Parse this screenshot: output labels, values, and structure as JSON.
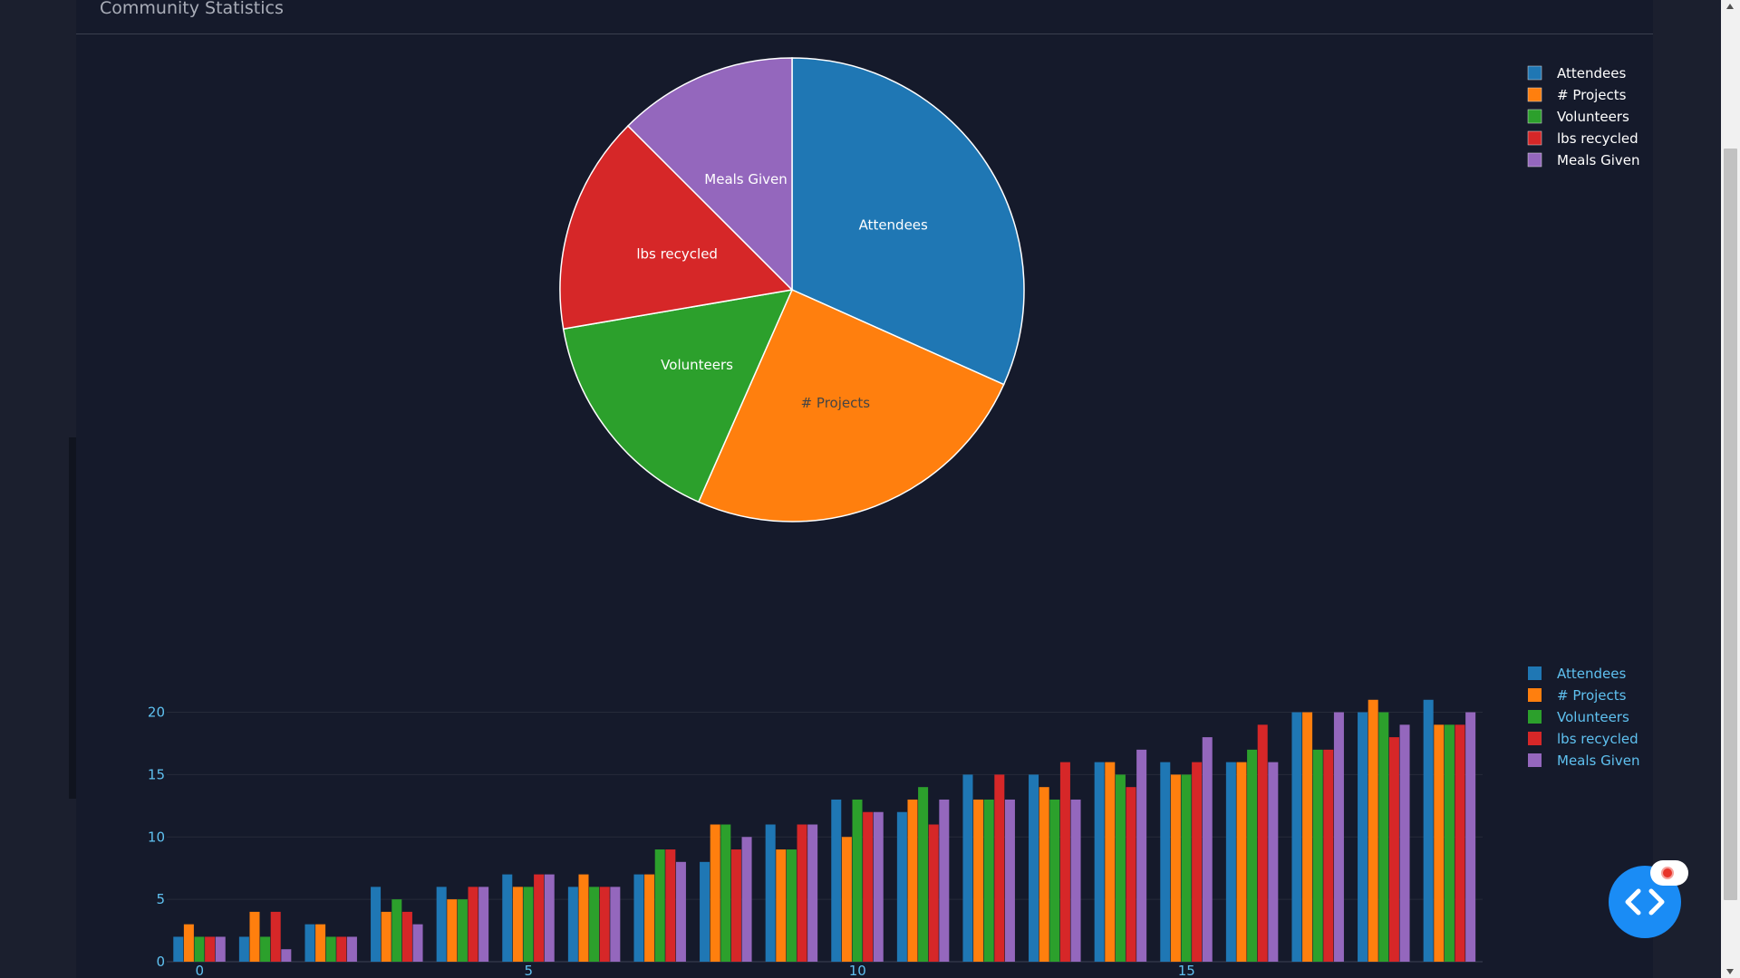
{
  "panel": {
    "title": "Community Statistics"
  },
  "chart_data": [
    {
      "type": "pie",
      "labels": [
        "Attendees",
        "# Projects",
        "Volunteers",
        "lbs recycled",
        "Meals Given"
      ],
      "values": [
        31.7,
        24.9,
        15.7,
        15.2,
        12.5
      ],
      "colors": [
        "#1f77b4",
        "#ff7f0e",
        "#2ca02c",
        "#d62728",
        "#9467bd"
      ],
      "legend": "top-right",
      "slice_labels": "inside"
    },
    {
      "type": "bar",
      "x": [
        0,
        1,
        2,
        3,
        4,
        5,
        6,
        7,
        8,
        9,
        10,
        11,
        12,
        13,
        14,
        15,
        16,
        17,
        18,
        19
      ],
      "series": [
        {
          "name": "Attendees",
          "color": "#1f77b4",
          "values": [
            2,
            2,
            3,
            6,
            6,
            7,
            6,
            7,
            8,
            11,
            13,
            12,
            15,
            15,
            16,
            16,
            16,
            20,
            20,
            21
          ]
        },
        {
          "name": "# Projects",
          "color": "#ff7f0e",
          "values": [
            3,
            4,
            3,
            4,
            5,
            6,
            7,
            7,
            11,
            9,
            10,
            13,
            13,
            14,
            16,
            15,
            16,
            20,
            21,
            19
          ]
        },
        {
          "name": "Volunteers",
          "color": "#2ca02c",
          "values": [
            2,
            2,
            2,
            5,
            5,
            6,
            6,
            9,
            11,
            9,
            13,
            14,
            13,
            13,
            15,
            15,
            17,
            17,
            20,
            19
          ]
        },
        {
          "name": "lbs recycled",
          "color": "#d62728",
          "values": [
            2,
            4,
            2,
            4,
            6,
            7,
            6,
            9,
            9,
            11,
            12,
            11,
            15,
            16,
            14,
            16,
            19,
            17,
            18,
            19
          ]
        },
        {
          "name": "Meals Given",
          "color": "#9467bd",
          "values": [
            2,
            1,
            2,
            3,
            6,
            7,
            6,
            8,
            10,
            11,
            12,
            13,
            13,
            13,
            17,
            18,
            16,
            20,
            19,
            20
          ]
        }
      ],
      "xticks": [
        0,
        5,
        10,
        15
      ],
      "yticks": [
        0,
        5,
        10,
        15,
        20
      ],
      "xlim": [
        -0.5,
        19.5
      ],
      "ylim": [
        0,
        22
      ],
      "grid": true,
      "legend": "top-right"
    }
  ]
}
